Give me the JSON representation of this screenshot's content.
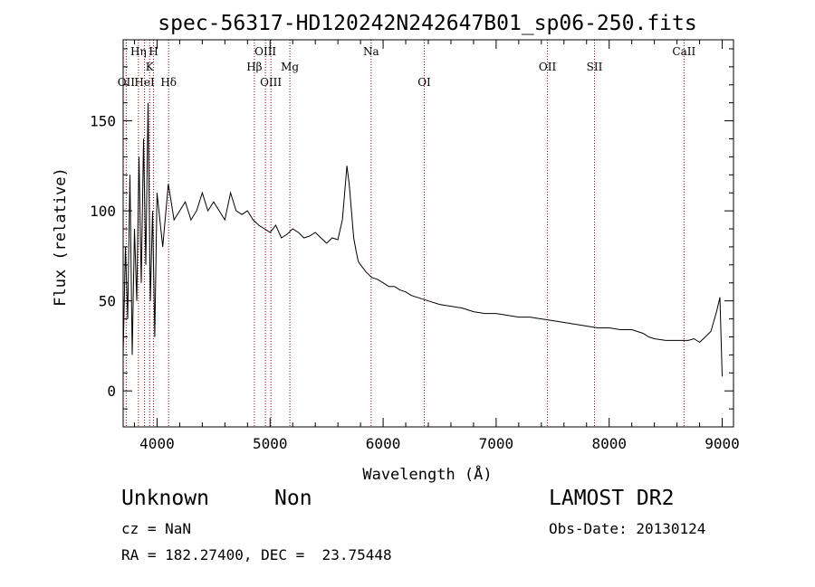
{
  "chart_data": {
    "type": "line",
    "title": "spec-56317-HD120242N242647B01_sp06-250.fits",
    "xlabel": "Wavelength (Å)",
    "ylabel": "Flux (relative)",
    "xlim": [
      3700,
      9100
    ],
    "ylim": [
      -20,
      195
    ],
    "x_ticks": [
      4000,
      5000,
      6000,
      7000,
      8000,
      9000
    ],
    "y_ticks": [
      0,
      50,
      100,
      150
    ],
    "grid": false,
    "series": [
      {
        "x": [
          3700,
          3720,
          3740,
          3760,
          3780,
          3800,
          3820,
          3840,
          3860,
          3880,
          3900,
          3920,
          3940,
          3960,
          3980,
          4000,
          4050,
          4100,
          4150,
          4200,
          4250,
          4300,
          4350,
          4400,
          4450,
          4500,
          4550,
          4600,
          4650,
          4700,
          4750,
          4800,
          4850,
          4900,
          4950,
          5000,
          5050,
          5100,
          5150,
          5200,
          5250,
          5300,
          5350,
          5400,
          5450,
          5500,
          5550,
          5600,
          5640,
          5660,
          5680,
          5700,
          5720,
          5740,
          5760,
          5780,
          5800,
          5850,
          5900,
          5950,
          6000,
          6050,
          6100,
          6150,
          6200,
          6250,
          6300,
          6350,
          6400,
          6500,
          6600,
          6700,
          6800,
          6900,
          7000,
          7100,
          7200,
          7300,
          7400,
          7500,
          7600,
          7700,
          7800,
          7900,
          8000,
          8100,
          8200,
          8300,
          8350,
          8400,
          8500,
          8600,
          8700,
          8750,
          8800,
          8850,
          8900,
          8950,
          8980,
          9000
        ],
        "y": [
          20,
          80,
          40,
          120,
          20,
          90,
          50,
          130,
          60,
          140,
          70,
          160,
          50,
          100,
          30,
          110,
          80,
          115,
          95,
          100,
          105,
          95,
          100,
          110,
          100,
          105,
          100,
          95,
          110,
          100,
          98,
          100,
          95,
          92,
          90,
          88,
          92,
          85,
          87,
          90,
          88,
          85,
          86,
          88,
          85,
          82,
          85,
          84,
          95,
          110,
          125,
          115,
          100,
          85,
          78,
          72,
          70,
          66,
          63,
          62,
          60,
          58,
          58,
          56,
          55,
          53,
          52,
          51,
          50,
          48,
          47,
          46,
          44,
          43,
          43,
          42,
          41,
          41,
          40,
          39,
          38,
          37,
          36,
          35,
          35,
          34,
          34,
          32,
          30,
          29,
          28,
          28,
          28,
          29,
          27,
          30,
          33,
          44,
          52,
          8
        ]
      }
    ],
    "lines": [
      {
        "label": "OII",
        "x": 3727,
        "row": 3
      },
      {
        "label": "Hη",
        "x": 3835,
        "row": 1
      },
      {
        "label": "HeI",
        "x": 3889,
        "row": 3
      },
      {
        "label": "K",
        "x": 3934,
        "row": 2
      },
      {
        "label": "H",
        "x": 3969,
        "row": 1
      },
      {
        "label": "Hδ",
        "x": 4102,
        "row": 3
      },
      {
        "label": "Hβ",
        "x": 4861,
        "row": 2
      },
      {
        "label": "OIII",
        "x": 4959,
        "row": 1
      },
      {
        "label": "OIII",
        "x": 5007,
        "row": 3
      },
      {
        "label": "Mg",
        "x": 5175,
        "row": 2
      },
      {
        "label": "Na",
        "x": 5894,
        "row": 1
      },
      {
        "label": "OI",
        "x": 6364,
        "row": 3
      },
      {
        "label": "OII",
        "x": 7454,
        "row": 2
      },
      {
        "label": "SII",
        "x": 7870,
        "row": 2
      },
      {
        "label": "CaII",
        "x": 8662,
        "row": 1
      }
    ]
  },
  "info": {
    "object_type": "Unknown",
    "subclass": "Non",
    "survey": "LAMOST DR2",
    "cz": "cz = NaN",
    "obs_date": "Obs-Date: 20130124",
    "coords": "RA = 182.27400, DEC =  23.75448"
  }
}
